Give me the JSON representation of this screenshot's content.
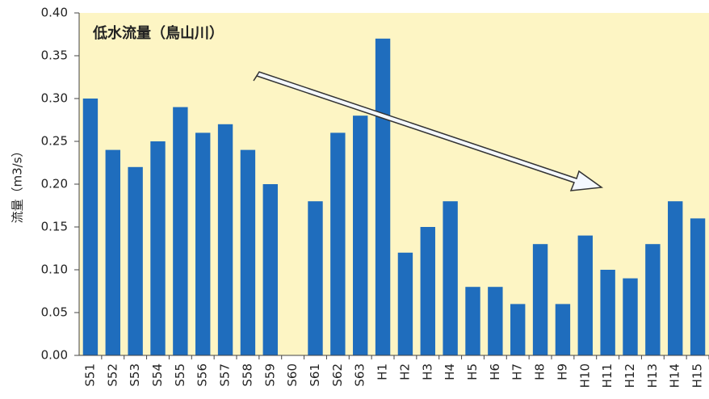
{
  "chart_data": {
    "type": "bar",
    "title": "低水流量（鳥山川）",
    "ylabel": "流量（m3/s）",
    "categories": [
      "S51",
      "S52",
      "S53",
      "S54",
      "S55",
      "S56",
      "S57",
      "S58",
      "S59",
      "S60",
      "S61",
      "S62",
      "S63",
      "H1",
      "H2",
      "H3",
      "H4",
      "H5",
      "H6",
      "H7",
      "H8",
      "H9",
      "H10",
      "H11",
      "H12",
      "H13",
      "H14",
      "H15"
    ],
    "values": [
      0.3,
      0.24,
      0.22,
      0.25,
      0.29,
      0.26,
      0.27,
      0.24,
      0.2,
      null,
      0.18,
      0.26,
      0.28,
      0.37,
      0.12,
      0.15,
      0.18,
      0.08,
      0.08,
      0.06,
      0.13,
      0.06,
      0.14,
      0.1,
      0.09,
      0.13,
      0.18,
      0.16
    ],
    "color": "#1f6dbd",
    "ylim": [
      0,
      0.4
    ],
    "yticks": [
      {
        "value": 0,
        "label": "0.00"
      },
      {
        "value": 0.05,
        "label": "0.05"
      },
      {
        "value": 0.1,
        "label": "0.10"
      },
      {
        "value": 0.15,
        "label": "0.15"
      },
      {
        "value": 0.2,
        "label": "0.20"
      },
      {
        "value": 0.25,
        "label": "0.25"
      },
      {
        "value": 0.3,
        "label": "0.30"
      },
      {
        "value": 0.35,
        "label": "0.35"
      },
      {
        "value": 0.4,
        "label": "0.40"
      }
    ],
    "grid": false
  }
}
